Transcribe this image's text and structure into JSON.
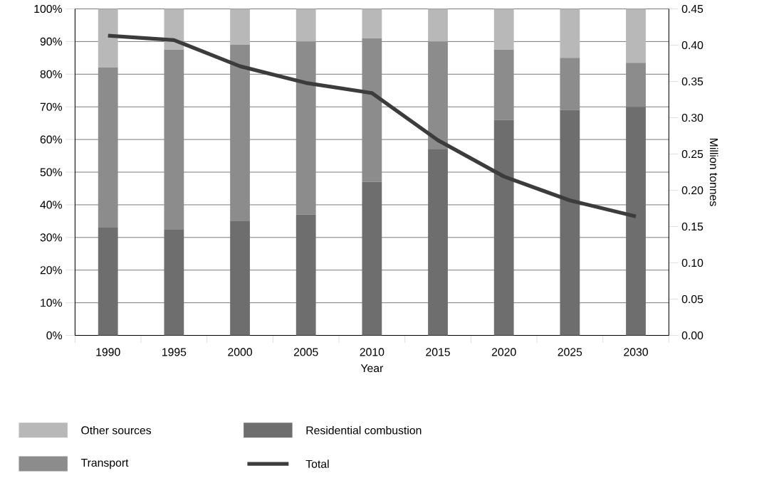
{
  "chart_data": {
    "type": "bar",
    "stacked": true,
    "xlabel": "Year",
    "y2label": "Million tonnes",
    "categories": [
      "1990",
      "1995",
      "2000",
      "2005",
      "2010",
      "2015",
      "2020",
      "2025",
      "2030"
    ],
    "series": [
      {
        "name": "Residential combustion",
        "color": "#6e6e6e",
        "values": [
          33,
          32.5,
          35,
          37,
          47,
          57,
          66,
          69,
          70
        ]
      },
      {
        "name": "Transport",
        "color": "#8c8c8c",
        "values": [
          49,
          55,
          54,
          53,
          44,
          33,
          21.5,
          16,
          13.5
        ]
      },
      {
        "name": "Other sources",
        "color": "#b8b8b8",
        "values": [
          18,
          12.5,
          11,
          10,
          9,
          10,
          12.5,
          15,
          16.5
        ]
      },
      {
        "name": "Total",
        "type": "line",
        "axis": "y2",
        "color": "#3c3c3c",
        "values": [
          0.413,
          0.407,
          0.371,
          0.348,
          0.334,
          0.269,
          0.219,
          0.186,
          0.164
        ]
      }
    ],
    "ylim": [
      0,
      100
    ],
    "yticks": [
      {
        "value": 0,
        "label": "0%"
      },
      {
        "value": 10,
        "label": "10%"
      },
      {
        "value": 20,
        "label": "20%"
      },
      {
        "value": 30,
        "label": "30%"
      },
      {
        "value": 40,
        "label": "40%"
      },
      {
        "value": 50,
        "label": "50%"
      },
      {
        "value": 60,
        "label": "60%"
      },
      {
        "value": 70,
        "label": "70%"
      },
      {
        "value": 80,
        "label": "80%"
      },
      {
        "value": 90,
        "label": "90%"
      },
      {
        "value": 100,
        "label": "100%"
      }
    ],
    "y2lim": [
      0,
      0.45
    ],
    "y2ticks": [
      {
        "value": 0,
        "label": "0.00"
      },
      {
        "value": 0.05,
        "label": "0.05"
      },
      {
        "value": 0.1,
        "label": "0.10"
      },
      {
        "value": 0.15,
        "label": "0.15"
      },
      {
        "value": 0.2,
        "label": "0.20"
      },
      {
        "value": 0.25,
        "label": "0.25"
      },
      {
        "value": 0.3,
        "label": "0.30"
      },
      {
        "value": 0.35,
        "label": "0.35"
      },
      {
        "value": 0.4,
        "label": "0.40"
      },
      {
        "value": 0.45,
        "label": "0.45"
      }
    ],
    "grid": "y",
    "legend": "bottom"
  }
}
